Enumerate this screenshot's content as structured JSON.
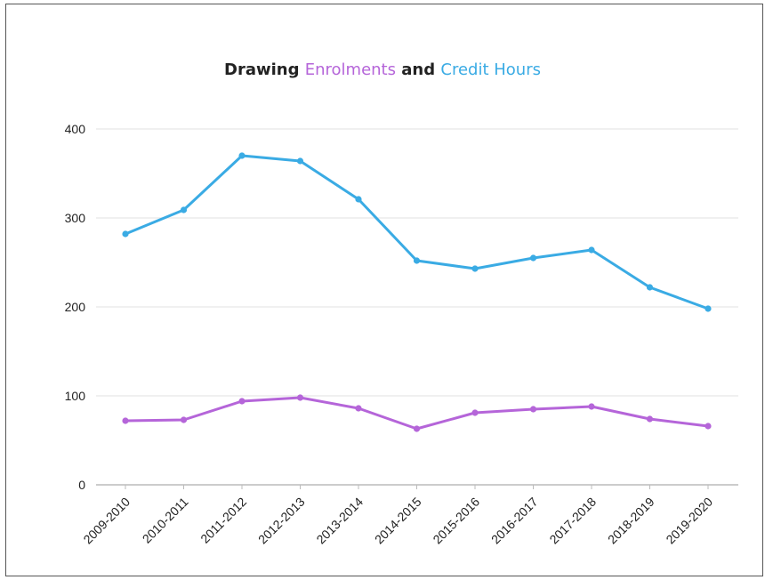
{
  "title_parts": {
    "p1": "Drawing ",
    "p2": "Enrolments",
    "p3": " and ",
    "p4": "Credit Hours"
  },
  "colors": {
    "title_text": "#222222",
    "enrolments": "#b565d9",
    "credit_hours": "#3aabe4",
    "grid": "#e6e6e6",
    "axis": "#bbbbbb"
  },
  "chart_data": {
    "type": "line",
    "title": "Drawing Enrolments and Credit Hours",
    "categories": [
      "2009-2010",
      "2010-2011",
      "2011-2012",
      "2012-2013",
      "2013-2014",
      "2014-2015",
      "2015-2016",
      "2016-2017",
      "2017-2018",
      "2018-2019",
      "2019-2020"
    ],
    "series": [
      {
        "name": "Credit Hours",
        "color": "#3aabe4",
        "values": [
          282,
          309,
          370,
          364,
          321,
          252,
          243,
          255,
          264,
          222,
          198
        ]
      },
      {
        "name": "Enrolments",
        "color": "#b565d9",
        "values": [
          72,
          73,
          94,
          98,
          86,
          63,
          81,
          85,
          88,
          74,
          66
        ]
      }
    ],
    "ylim": [
      0,
      400
    ],
    "yticks": [
      0,
      100,
      200,
      300,
      400
    ],
    "grid": true,
    "legend": "title"
  }
}
